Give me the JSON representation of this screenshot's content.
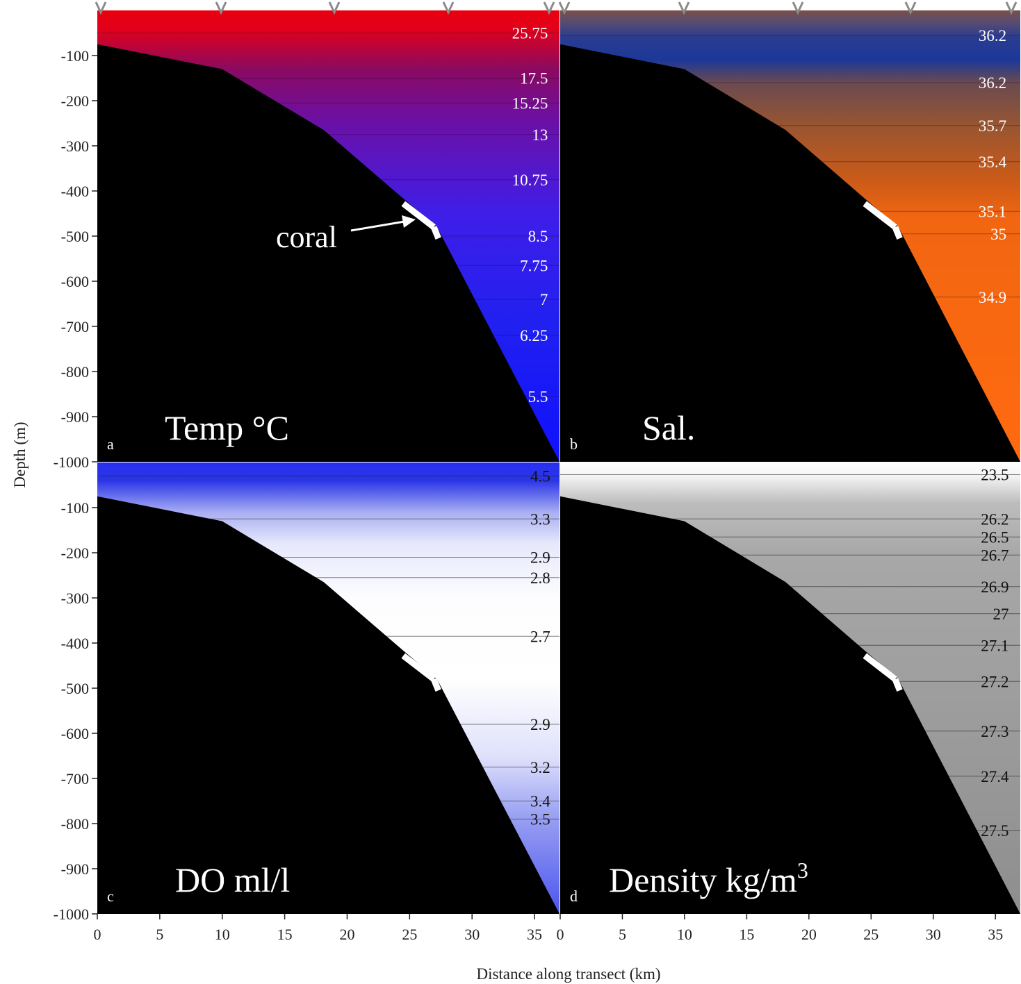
{
  "figure": {
    "ylabel": "Depth (m)",
    "xlabel": "Distance along transect (km)",
    "y_ticks": [
      -100,
      -200,
      -300,
      -400,
      -500,
      -600,
      -700,
      -800,
      -900,
      -1000
    ],
    "x_ticks": [
      0,
      5,
      10,
      15,
      20,
      25,
      30,
      35
    ],
    "annotation": "coral",
    "colors": {
      "seafloor": "#000000",
      "coral_marker": "#ffffff",
      "station_marker": "#8a8a8a"
    }
  },
  "chart_data": [
    {
      "type": "heatmap",
      "panel_letter": "a",
      "title": "Temp °C",
      "xlim": [
        0,
        37
      ],
      "ylim": [
        -1000,
        0
      ],
      "gradient": [
        {
          "depth": 0,
          "color": "#e8000f"
        },
        {
          "depth": -40,
          "color": "#e3001a"
        },
        {
          "depth": -130,
          "color": "#8a0a60"
        },
        {
          "depth": -250,
          "color": "#6a10a8"
        },
        {
          "depth": -450,
          "color": "#3f1ee8"
        },
        {
          "depth": -700,
          "color": "#2020f0"
        },
        {
          "depth": -1000,
          "color": "#1010ff"
        }
      ],
      "labels": [
        {
          "text": "25.75",
          "depth": -50
        },
        {
          "text": "17.5",
          "depth": -150
        },
        {
          "text": "15.25",
          "depth": -205
        },
        {
          "text": "13",
          "depth": -275
        },
        {
          "text": "10.75",
          "depth": -375
        },
        {
          "text": "8.5",
          "depth": -500
        },
        {
          "text": "7.75",
          "depth": -565
        },
        {
          "text": "7",
          "depth": -640
        },
        {
          "text": "6.25",
          "depth": -720
        },
        {
          "text": "5.5",
          "depth": -855
        }
      ],
      "label_color": "#ffffff"
    },
    {
      "type": "heatmap",
      "panel_letter": "b",
      "title": "Sal.",
      "xlim": [
        0,
        37
      ],
      "ylim": [
        -1000,
        0
      ],
      "gradient": [
        {
          "depth": 0,
          "color": "#7a5048"
        },
        {
          "depth": -25,
          "color": "#5a4c70"
        },
        {
          "depth": -60,
          "color": "#2a3c90"
        },
        {
          "depth": -110,
          "color": "#1c3898"
        },
        {
          "depth": -160,
          "color": "#6a4a50"
        },
        {
          "depth": -260,
          "color": "#9a5530"
        },
        {
          "depth": -370,
          "color": "#c85a1a"
        },
        {
          "depth": -460,
          "color": "#f26611"
        },
        {
          "depth": -1000,
          "color": "#ff6a10"
        }
      ],
      "labels": [
        {
          "text": "36.2",
          "depth": -55
        },
        {
          "text": "36.2",
          "depth": -160
        },
        {
          "text": "35.7",
          "depth": -255
        },
        {
          "text": "35.4",
          "depth": -335
        },
        {
          "text": "35.1",
          "depth": -445
        },
        {
          "text": "35",
          "depth": -495
        },
        {
          "text": "34.9",
          "depth": -635
        }
      ],
      "label_color": "#ffffff"
    },
    {
      "type": "heatmap",
      "panel_letter": "c",
      "title": "DO ml/l",
      "xlim": [
        0,
        37
      ],
      "ylim": [
        -1000,
        0
      ],
      "gradient": [
        {
          "depth": 0,
          "color": "#2830ee"
        },
        {
          "depth": -40,
          "color": "#2a35e8"
        },
        {
          "depth": -110,
          "color": "#a8aef2"
        },
        {
          "depth": -180,
          "color": "#e6e8fb"
        },
        {
          "depth": -300,
          "color": "#fdfdff"
        },
        {
          "depth": -480,
          "color": "#ffffff"
        },
        {
          "depth": -650,
          "color": "#dfe1fb"
        },
        {
          "depth": -780,
          "color": "#9ba2f2"
        },
        {
          "depth": -1000,
          "color": "#4b55ee"
        }
      ],
      "labels": [
        {
          "text": "4.5",
          "depth": -30
        },
        {
          "text": "3.3",
          "depth": -125
        },
        {
          "text": "2.9",
          "depth": -210
        },
        {
          "text": "2.8",
          "depth": -255
        },
        {
          "text": "2.7",
          "depth": -385
        },
        {
          "text": "2.9",
          "depth": -580
        },
        {
          "text": "3.2",
          "depth": -675
        },
        {
          "text": "3.4",
          "depth": -750
        },
        {
          "text": "3.5",
          "depth": -790
        }
      ],
      "label_color": "#111111"
    },
    {
      "type": "heatmap",
      "panel_letter": "d",
      "title": "Density kg/m",
      "title_superscript": "3",
      "xlim": [
        0,
        37
      ],
      "ylim": [
        -1000,
        0
      ],
      "gradient": [
        {
          "depth": 0,
          "color": "#ffffff"
        },
        {
          "depth": -30,
          "color": "#f4f4f4"
        },
        {
          "depth": -90,
          "color": "#bdbdbd"
        },
        {
          "depth": -200,
          "color": "#a8a8a8"
        },
        {
          "depth": -1000,
          "color": "#8e8e8e"
        }
      ],
      "labels": [
        {
          "text": "23.5",
          "depth": -27
        },
        {
          "text": "26.2",
          "depth": -125
        },
        {
          "text": "26.5",
          "depth": -165
        },
        {
          "text": "26.7",
          "depth": -205
        },
        {
          "text": "26.9",
          "depth": -275
        },
        {
          "text": "27",
          "depth": -335
        },
        {
          "text": "27.1",
          "depth": -405
        },
        {
          "text": "27.2",
          "depth": -485
        },
        {
          "text": "27.3",
          "depth": -595
        },
        {
          "text": "27.4",
          "depth": -695
        },
        {
          "text": "27.5",
          "depth": -815
        }
      ],
      "label_color": "#111111"
    }
  ]
}
